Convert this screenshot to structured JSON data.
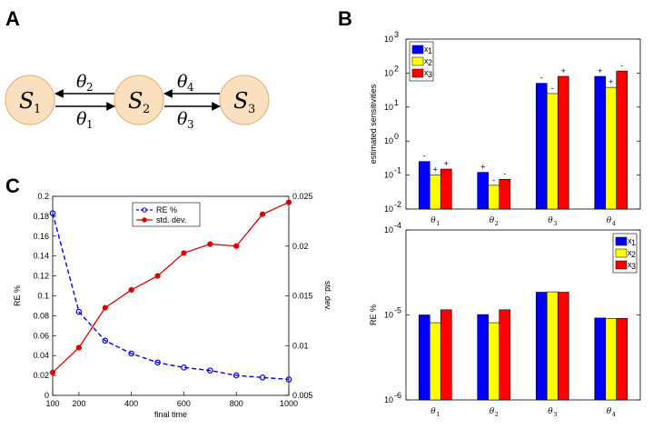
{
  "panels": {
    "a": "A",
    "b": "B",
    "c": "C"
  },
  "diagram": {
    "nodes": [
      {
        "sym": "S",
        "sub": "1"
      },
      {
        "sym": "S",
        "sub": "2"
      },
      {
        "sym": "S",
        "sub": "3"
      }
    ],
    "edges": [
      {
        "sym": "θ",
        "sub": "2"
      },
      {
        "sym": "θ",
        "sub": "1"
      },
      {
        "sym": "θ",
        "sub": "4"
      },
      {
        "sym": "θ",
        "sub": "3"
      }
    ],
    "node_color": "#fbe0c0",
    "node_stroke": "#e9b77a"
  },
  "colors": {
    "x1": "#0000ff",
    "x2": "#ffff00",
    "x3": "#ff0000",
    "re": "#0000ff",
    "sd": "#dd0000"
  },
  "chart_data": [
    {
      "type": "bar",
      "id": "B-top",
      "ylabel": "estimated sensitivities",
      "yscale": "log",
      "ylim": [
        0.01,
        1000
      ],
      "yticks": [
        {
          "base": "10",
          "exp": "-2"
        },
        {
          "base": "10",
          "exp": "-1"
        },
        {
          "base": "10",
          "exp": "0"
        },
        {
          "base": "10",
          "exp": "1"
        },
        {
          "base": "10",
          "exp": "2"
        },
        {
          "base": "10",
          "exp": "3"
        }
      ],
      "categories": [
        {
          "sym": "θ",
          "sub": "1"
        },
        {
          "sym": "θ",
          "sub": "2"
        },
        {
          "sym": "θ",
          "sub": "3"
        },
        {
          "sym": "θ",
          "sub": "4"
        }
      ],
      "legend": [
        {
          "sym": "x",
          "sub": "1"
        },
        {
          "sym": "x",
          "sub": "2"
        },
        {
          "sym": "x",
          "sub": "3"
        }
      ],
      "legend_position": "top-left",
      "series": [
        {
          "name": "x1",
          "values": [
            0.25,
            0.12,
            50,
            80
          ],
          "signs": [
            "-",
            "+",
            "-",
            "+"
          ]
        },
        {
          "name": "x2",
          "values": [
            0.1,
            0.05,
            25,
            38
          ],
          "signs": [
            "+",
            "-",
            "-",
            "+"
          ]
        },
        {
          "name": "x3",
          "values": [
            0.15,
            0.075,
            80,
            115
          ],
          "signs": [
            "+",
            "-",
            "+",
            "-"
          ]
        }
      ]
    },
    {
      "type": "bar",
      "id": "B-bottom",
      "ylabel": "RE %",
      "yscale": "log",
      "ylim": [
        1e-06,
        0.0001
      ],
      "yticks": [
        {
          "base": "10",
          "exp": "-6"
        },
        {
          "base": "10",
          "exp": "-5"
        },
        {
          "base": "10",
          "exp": "-4"
        }
      ],
      "categories": [
        {
          "sym": "θ",
          "sub": "1"
        },
        {
          "sym": "θ",
          "sub": "2"
        },
        {
          "sym": "θ",
          "sub": "3"
        },
        {
          "sym": "θ",
          "sub": "4"
        }
      ],
      "legend": [
        {
          "sym": "x",
          "sub": "1"
        },
        {
          "sym": "x",
          "sub": "2"
        },
        {
          "sym": "x",
          "sub": "3"
        }
      ],
      "legend_position": "top-right",
      "series": [
        {
          "name": "x1",
          "values": [
            1e-05,
            1.01e-05,
            1.85e-05,
            9.2e-06
          ]
        },
        {
          "name": "x2",
          "values": [
            8.1e-06,
            8.1e-06,
            1.87e-05,
            9.1e-06
          ]
        },
        {
          "name": "x3",
          "values": [
            1.15e-05,
            1.15e-05,
            1.85e-05,
            9.1e-06
          ]
        }
      ]
    },
    {
      "type": "line",
      "id": "C",
      "xlabel": "final time",
      "ylabel": "RE %",
      "ylabel_right": "std. dev.",
      "x": [
        100,
        200,
        300,
        400,
        500,
        600,
        700,
        800,
        900,
        1000
      ],
      "xlim": [
        100,
        1000
      ],
      "xticks": [
        "100",
        "200",
        "400",
        "600",
        "800",
        "1000"
      ],
      "ylim": [
        0,
        0.2
      ],
      "yticks": [
        "0",
        "0.02",
        "0.04",
        "0.06",
        "0.08",
        "0.1",
        "0.12",
        "0.14",
        "0.16",
        "0.18",
        "0.2"
      ],
      "ylim_right": [
        0.005,
        0.025
      ],
      "yticks_right": [
        "0.005",
        "0.01",
        "0.015",
        "0.02",
        "0.025"
      ],
      "legend_position": "top-center",
      "series": [
        {
          "name": "RE %",
          "axis": "left",
          "style": "dashed",
          "values": [
            0.183,
            0.084,
            0.055,
            0.042,
            0.033,
            0.028,
            0.025,
            0.02,
            0.018,
            0.016
          ]
        },
        {
          "name": "std. dev.",
          "axis": "right",
          "style": "solid",
          "values": [
            0.0073,
            0.0098,
            0.0138,
            0.0156,
            0.017,
            0.0193,
            0.0202,
            0.02,
            0.0232,
            0.0244
          ]
        }
      ]
    }
  ]
}
